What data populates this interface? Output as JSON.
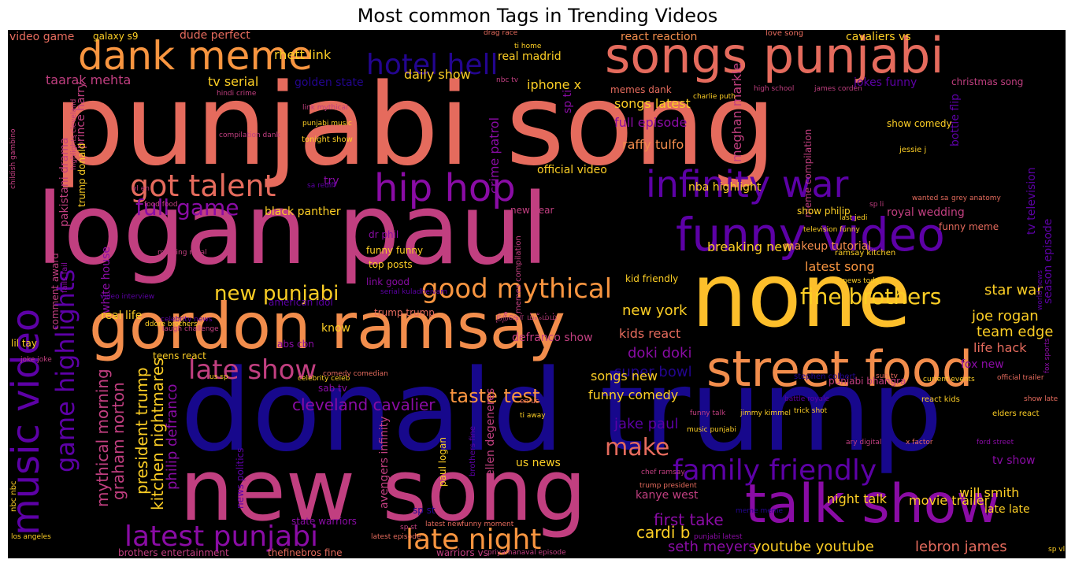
{
  "title": "Most common Tags in Trending Videos",
  "words": [
    {
      "text": "punjabi song",
      "color": "#e56b5d"
    },
    {
      "text": "logan paul",
      "color": "#c13f80"
    },
    {
      "text": "donald trump",
      "color": "#17088c"
    },
    {
      "text": "none",
      "color": "#fdbf2b"
    },
    {
      "text": "new song",
      "color": "#c13f80"
    },
    {
      "text": "gordon ramsay",
      "color": "#f28d4c"
    },
    {
      "text": "songs punjabi",
      "color": "#e56b5d"
    },
    {
      "text": "street food",
      "color": "#f28d4c"
    },
    {
      "text": "talk show",
      "color": "#8a0ca5"
    },
    {
      "text": "funny video",
      "color": "#5d01a6"
    },
    {
      "text": "music video",
      "color": "#5d01a6"
    },
    {
      "text": "dank meme",
      "color": "#f89540"
    },
    {
      "text": "hip hop",
      "color": "#8a0ca5"
    },
    {
      "text": "infinity war",
      "color": "#5d01a6"
    },
    {
      "text": "hotel hell",
      "color": "#23058f"
    },
    {
      "text": "got talent",
      "color": "#e56b5d"
    },
    {
      "text": "game highlights",
      "color": "#5d01a6"
    },
    {
      "text": "family friendly",
      "color": "#5d01a6"
    },
    {
      "text": "good mythical",
      "color": "#f89540"
    },
    {
      "text": "latest punjabi",
      "color": "#8a0ca5"
    },
    {
      "text": "late night",
      "color": "#f89540"
    },
    {
      "text": "late show",
      "color": "#c13f80"
    },
    {
      "text": "new punjabi",
      "color": "#fcce25"
    },
    {
      "text": "fine brothers",
      "color": "#fcce25"
    },
    {
      "text": "make",
      "color": "#e56b5d"
    },
    {
      "text": "full game",
      "color": "#8a0ca5"
    },
    {
      "text": "cleveland cavalier",
      "color": "#8a0ca5"
    },
    {
      "text": "taste test",
      "color": "#f89540"
    },
    {
      "text": "youtube youtube",
      "color": "#fcce25"
    },
    {
      "text": "lebron james",
      "color": "#e56b5d"
    },
    {
      "text": "first take",
      "color": "#8a0ca5"
    },
    {
      "text": "seth meyers",
      "color": "#8a0ca5"
    },
    {
      "text": "cardi b",
      "color": "#fcce25"
    },
    {
      "text": "kitchen nightmares",
      "color": "#fcce25"
    },
    {
      "text": "president trump",
      "color": "#fcce25"
    },
    {
      "text": "mythical morning",
      "color": "#c13f80"
    },
    {
      "text": "graham norton",
      "color": "#c13f80"
    },
    {
      "text": "philip defranco",
      "color": "#8a0ca5"
    },
    {
      "text": "super bowl",
      "color": "#23058f"
    },
    {
      "text": "jake paul",
      "color": "#5d01a6"
    },
    {
      "text": "doki doki",
      "color": "#8a0ca5"
    },
    {
      "text": "new york",
      "color": "#fcce25"
    },
    {
      "text": "kids react",
      "color": "#e56b5d"
    },
    {
      "text": "funny comedy",
      "color": "#fcce25"
    },
    {
      "text": "songs new",
      "color": "#fcce25"
    },
    {
      "text": "breaking new",
      "color": "#fcce25"
    },
    {
      "text": "latest song",
      "color": "#f89540"
    },
    {
      "text": "joe rogan",
      "color": "#fcce25"
    },
    {
      "text": "team edge",
      "color": "#fcce25"
    },
    {
      "text": "star war",
      "color": "#fcce25"
    },
    {
      "text": "life hack",
      "color": "#e56b5d"
    },
    {
      "text": "fox new",
      "color": "#8a0ca5"
    },
    {
      "text": "will smith",
      "color": "#fcce25"
    },
    {
      "text": "late late",
      "color": "#fcce25"
    },
    {
      "text": "movie trailer",
      "color": "#fcce25"
    },
    {
      "text": "night talk",
      "color": "#fcce25"
    },
    {
      "text": "kanye west",
      "color": "#c13f80"
    },
    {
      "text": "tv show",
      "color": "#8a0ca5"
    },
    {
      "text": "daily show",
      "color": "#fcce25"
    },
    {
      "text": "tv serial",
      "color": "#fcce25"
    },
    {
      "text": "taarak mehta",
      "color": "#c13f80"
    },
    {
      "text": "rhett link",
      "color": "#fcce25"
    },
    {
      "text": "dude perfect",
      "color": "#e56b5d"
    },
    {
      "text": "video game",
      "color": "#e56b5d"
    },
    {
      "text": "golden state",
      "color": "#23058f"
    },
    {
      "text": "iphone x",
      "color": "#fcce25"
    },
    {
      "text": "songs latest",
      "color": "#fcce25"
    },
    {
      "text": "full episode",
      "color": "#8a0ca5"
    },
    {
      "text": "raffy tulfo",
      "color": "#f28d4c"
    },
    {
      "text": "meghan markle",
      "color": "#c13f80"
    },
    {
      "text": "crime patrol",
      "color": "#8a0ca5"
    },
    {
      "text": "official video",
      "color": "#fcce25"
    },
    {
      "text": "nba highlight",
      "color": "#fcce25"
    },
    {
      "text": "black panther",
      "color": "#fcce25"
    },
    {
      "text": "makeup tutorial",
      "color": "#f28d4c"
    },
    {
      "text": "royal wedding",
      "color": "#c13f80"
    },
    {
      "text": "new year",
      "color": "#c13f80"
    },
    {
      "text": "dr phil",
      "color": "#8a0ca5"
    },
    {
      "text": "funny funny",
      "color": "#fcce25"
    },
    {
      "text": "top posts",
      "color": "#fcce25"
    },
    {
      "text": "link good",
      "color": "#8a0ca5"
    },
    {
      "text": "american idol",
      "color": "#5d01a6"
    },
    {
      "text": "trump trump",
      "color": "#e56b5d"
    },
    {
      "text": "real life",
      "color": "#fcce25"
    },
    {
      "text": "white house",
      "color": "#8a0ca5"
    },
    {
      "text": "pakistani drama",
      "color": "#c13f80"
    },
    {
      "text": "prince harry",
      "color": "#c13f80"
    },
    {
      "text": "trump donald",
      "color": "#fcce25"
    },
    {
      "text": "season episode",
      "color": "#5d01a6"
    },
    {
      "text": "tv television",
      "color": "#5d01a6"
    },
    {
      "text": "bottle flip",
      "color": "#5d01a6"
    },
    {
      "text": "cavaliers vs",
      "color": "#fcce25"
    },
    {
      "text": "react reaction",
      "color": "#f28d4c"
    },
    {
      "text": "jokes funny",
      "color": "#5d01a6"
    },
    {
      "text": "christmas song",
      "color": "#c13f80"
    },
    {
      "text": "real madrid",
      "color": "#fcce25"
    },
    {
      "text": "memes dank",
      "color": "#e56b5d"
    },
    {
      "text": "sp ti",
      "color": "#8a0ca5"
    },
    {
      "text": "try",
      "color": "#8a0ca5"
    },
    {
      "text": "know",
      "color": "#fcce25"
    },
    {
      "text": "defranco show",
      "color": "#c13f80"
    },
    {
      "text": "abs cbn",
      "color": "#8a0ca5"
    },
    {
      "text": "sab tv",
      "color": "#8a0ca5"
    },
    {
      "text": "us news",
      "color": "#fcce25"
    },
    {
      "text": "ellen degeneres",
      "color": "#c13f80"
    },
    {
      "text": "paul logan",
      "color": "#fcce25"
    },
    {
      "text": "avengers infinity",
      "color": "#c13f80"
    },
    {
      "text": "news politics",
      "color": "#5d01a6"
    },
    {
      "text": "lil tay",
      "color": "#fcce25"
    },
    {
      "text": "comment award",
      "color": "#c13f80"
    },
    {
      "text": "galaxy s9",
      "color": "#fcce25"
    },
    {
      "text": "brothers entertainment",
      "color": "#c13f80"
    },
    {
      "text": "thefinebros fine",
      "color": "#e56b5d"
    },
    {
      "text": "warriors vs",
      "color": "#c13f80"
    },
    {
      "text": "state warriors",
      "color": "#8a0ca5"
    },
    {
      "text": "nbc nbc",
      "color": "#fcce25"
    },
    {
      "text": "meme compilation",
      "color": "#c13f80"
    },
    {
      "text": "show philip",
      "color": "#fcce25"
    },
    {
      "text": "funny meme",
      "color": "#e56b5d"
    },
    {
      "text": "teens react",
      "color": "#fcce25"
    },
    {
      "text": "kid friendly",
      "color": "#fcce25"
    },
    {
      "text": "memes compilation",
      "color": "#c13f80"
    },
    {
      "text": "ramsay kitchen",
      "color": "#fcce25"
    },
    {
      "text": "punjabi bhangra",
      "color": "#c13f80"
    },
    {
      "text": "show comedy",
      "color": "#fcce25"
    },
    {
      "text": "jessie j",
      "color": "#fcce25"
    },
    {
      "text": "love song",
      "color": "#e56b5d"
    },
    {
      "text": "drag race",
      "color": "#e56b5d"
    },
    {
      "text": "stephen colbert",
      "color": "#23058f"
    },
    {
      "text": "react kids",
      "color": "#fcce25"
    },
    {
      "text": "elders react",
      "color": "#fcce25"
    },
    {
      "text": "funny talk",
      "color": "#c13f80"
    },
    {
      "text": "jimmy kimmel",
      "color": "#fcce25"
    },
    {
      "text": "trick shot",
      "color": "#fcce25"
    },
    {
      "text": "music punjabi",
      "color": "#fcce25"
    },
    {
      "text": "chef ramsay",
      "color": "#c13f80"
    },
    {
      "text": "trump president",
      "color": "#e56b5d"
    },
    {
      "text": "official trailer",
      "color": "#e56b5d"
    },
    {
      "text": "current events",
      "color": "#fcce25"
    },
    {
      "text": "show late",
      "color": "#e56b5d"
    },
    {
      "text": "last jedi",
      "color": "#fcce25"
    },
    {
      "text": "grey anatomy",
      "color": "#e56b5d"
    },
    {
      "text": "wanted sa",
      "color": "#e56b5d"
    },
    {
      "text": "television funny",
      "color": "#fcce25"
    },
    {
      "text": "celebrity news",
      "color": "#5d01a6"
    },
    {
      "text": "laugh challenge",
      "color": "#c13f80"
    },
    {
      "text": "celebrity celeb",
      "color": "#fcce25"
    },
    {
      "text": "comedy comedian",
      "color": "#e56b5d"
    },
    {
      "text": "los angeles",
      "color": "#fcce25"
    },
    {
      "text": "joke joke",
      "color": "#c13f80"
    },
    {
      "text": "funny moment",
      "color": "#e56b5d"
    },
    {
      "text": "latest new",
      "color": "#e56b5d"
    },
    {
      "text": "sp st",
      "color": "#23058f"
    },
    {
      "text": "us sp",
      "color": "#fcce25"
    },
    {
      "text": "priyamanaval episode",
      "color": "#c13f80"
    },
    {
      "text": "punjabi latest",
      "color": "#8a0ca5"
    },
    {
      "text": "sp vl",
      "color": "#fcce25"
    },
    {
      "text": "ti away",
      "color": "#fcce25"
    },
    {
      "text": "en us",
      "color": "#e56b5d"
    },
    {
      "text": "sun tv",
      "color": "#e56b5d"
    },
    {
      "text": "tonight show",
      "color": "#fcce25"
    },
    {
      "text": "charlie puth",
      "color": "#fcce25"
    },
    {
      "text": "hindi crime",
      "color": "#c13f80"
    },
    {
      "text": "compilation dank",
      "color": "#c13f80"
    },
    {
      "text": "link mythical",
      "color": "#c13f80"
    },
    {
      "text": "punjabi music",
      "color": "#fcce25"
    },
    {
      "text": "high school",
      "color": "#c13f80"
    },
    {
      "text": "james corden",
      "color": "#c13f80"
    },
    {
      "text": "nbc tv",
      "color": "#c13f80"
    },
    {
      "text": "ti home",
      "color": "#fcce25"
    },
    {
      "text": "childish gambino",
      "color": "#c13f80"
    },
    {
      "text": "highlights cleveland",
      "color": "#c13f80"
    },
    {
      "text": "fails fail",
      "color": "#8a0ca5"
    },
    {
      "text": "serial kuladheivam",
      "color": "#5d01a6"
    },
    {
      "text": "video interview",
      "color": "#5d01a6"
    },
    {
      "text": "morning meal",
      "color": "#c13f80"
    },
    {
      "text": "news today",
      "color": "#fcce25"
    },
    {
      "text": "food food",
      "color": "#c13f80"
    },
    {
      "text": "vl en",
      "color": "#c13f80"
    },
    {
      "text": "sa rediff",
      "color": "#5d01a6"
    },
    {
      "text": "battle royale",
      "color": "#5d01a6"
    },
    {
      "text": "fox sports",
      "color": "#8a0ca5"
    },
    {
      "text": "world news",
      "color": "#5d01a6"
    },
    {
      "text": "sp li",
      "color": "#c13f80"
    },
    {
      "text": "ddore brothers",
      "color": "#fcce25"
    },
    {
      "text": "ary digital",
      "color": "#c13f80"
    },
    {
      "text": "x factor",
      "color": "#e56b5d"
    },
    {
      "text": "ford street",
      "color": "#8a0ca5"
    },
    {
      "text": "brothers fine",
      "color": "#5d01a6"
    },
    {
      "text": "latest episode",
      "color": "#e56b5d"
    },
    {
      "text": "meme meme",
      "color": "#23058f"
    },
    {
      "text": "ந்நீஷர் ம்ஃம்ம்",
      "color": "#c13f80"
    },
    {
      "text": "sp st",
      "color": "#c13f80"
    }
  ]
}
